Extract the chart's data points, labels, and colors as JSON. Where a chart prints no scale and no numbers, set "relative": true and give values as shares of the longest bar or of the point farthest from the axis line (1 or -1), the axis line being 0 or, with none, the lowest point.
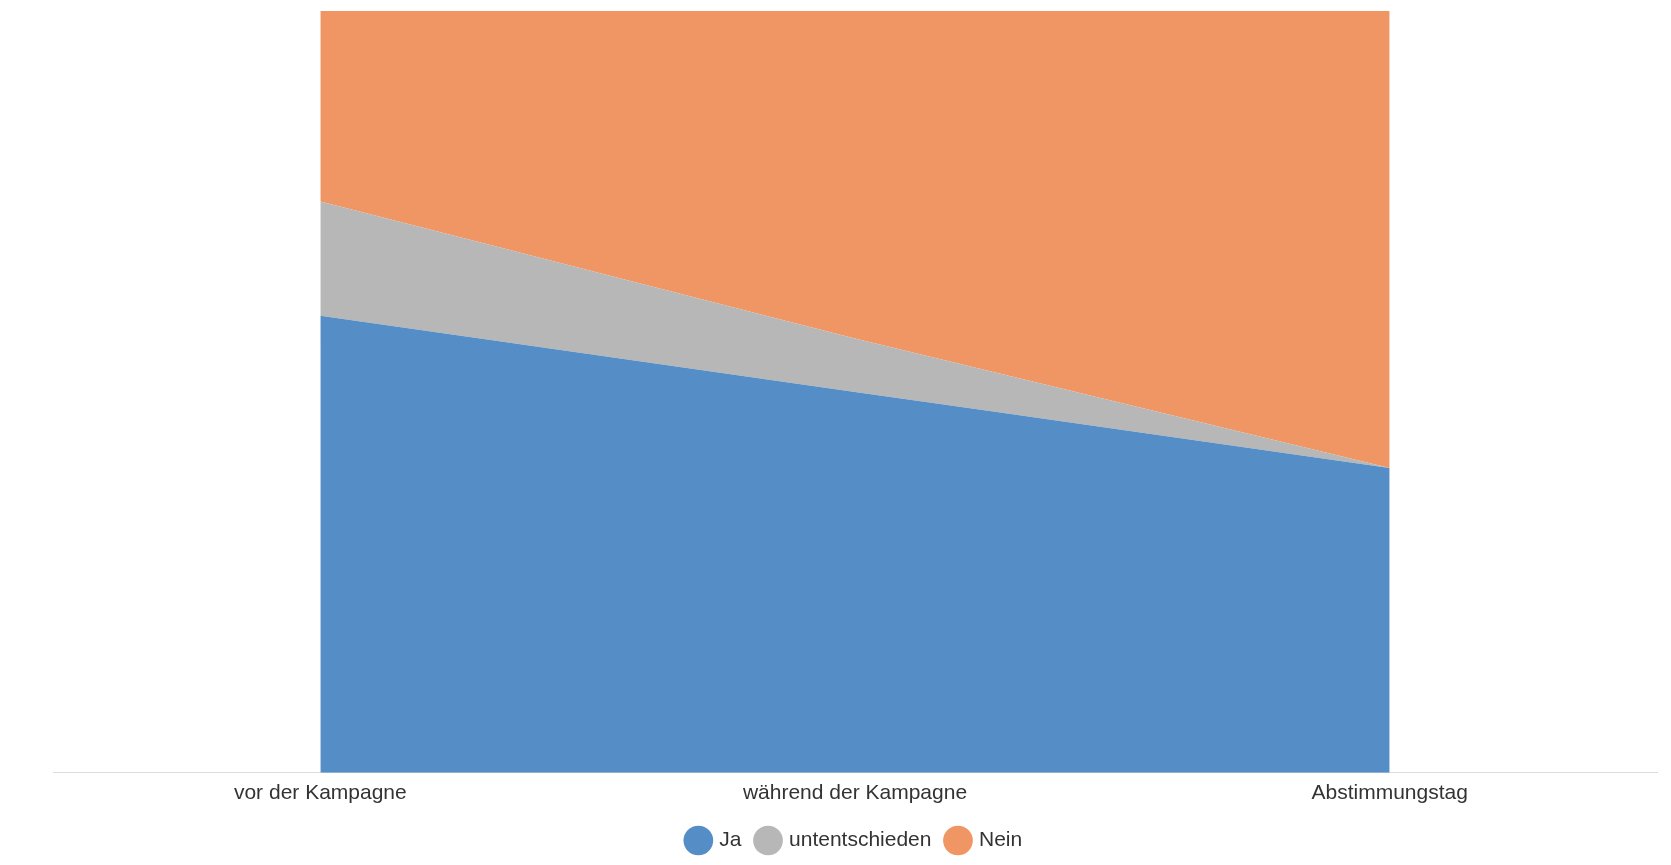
{
  "chart_data": {
    "type": "area",
    "stacked": true,
    "relative": true,
    "legend": "bottom",
    "grid": false,
    "categories": [
      "vor der Kampagne",
      "während der Kampagne",
      "Abstimmungstag"
    ],
    "series": [
      {
        "name": "Ja",
        "color": "#558ec6",
        "values": [
          0.6,
          0.5,
          0.4
        ]
      },
      {
        "name": "untentschieden",
        "color": "#b7b7b7",
        "values": [
          0.15,
          0.07,
          0.0
        ]
      },
      {
        "name": "Nein",
        "color": "#f09664",
        "values": [
          0.25,
          0.43,
          0.6
        ]
      }
    ]
  }
}
